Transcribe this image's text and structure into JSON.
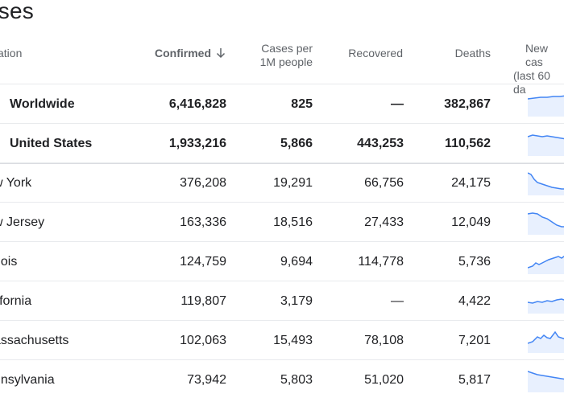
{
  "page": {
    "title": "ases"
  },
  "header": {
    "location": "cation",
    "confirmed": "Confirmed",
    "cases_per_line1": "Cases per",
    "cases_per_line2": "1M people",
    "recovered": "Recovered",
    "deaths": "Deaths",
    "new_cases_line1": "New cas",
    "new_cases_line2": "(last 60 da"
  },
  "rows": [
    {
      "location": "Worldwide",
      "confirmed": "6,416,828",
      "per_million": "825",
      "recovered": "—",
      "deaths": "382,867"
    },
    {
      "location": "United States",
      "confirmed": "1,933,216",
      "per_million": "5,866",
      "recovered": "443,253",
      "deaths": "110,562"
    },
    {
      "location": "w York",
      "confirmed": "376,208",
      "per_million": "19,291",
      "recovered": "66,756",
      "deaths": "24,175"
    },
    {
      "location": "w Jersey",
      "confirmed": "163,336",
      "per_million": "18,516",
      "recovered": "27,433",
      "deaths": "12,049"
    },
    {
      "location": "nois",
      "confirmed": "124,759",
      "per_million": "9,694",
      "recovered": "114,778",
      "deaths": "5,736"
    },
    {
      "location": "lifornia",
      "confirmed": "119,807",
      "per_million": "3,179",
      "recovered": "—",
      "deaths": "4,422"
    },
    {
      "location": "assachusetts",
      "confirmed": "102,063",
      "per_million": "15,493",
      "recovered": "78,108",
      "deaths": "7,201"
    },
    {
      "location": "nnsylvania",
      "confirmed": "73,942",
      "per_million": "5,803",
      "recovered": "51,020",
      "deaths": "5,817"
    }
  ],
  "sparkline_color": "#4285f4",
  "sparkline_fill": "#e8f0fe"
}
